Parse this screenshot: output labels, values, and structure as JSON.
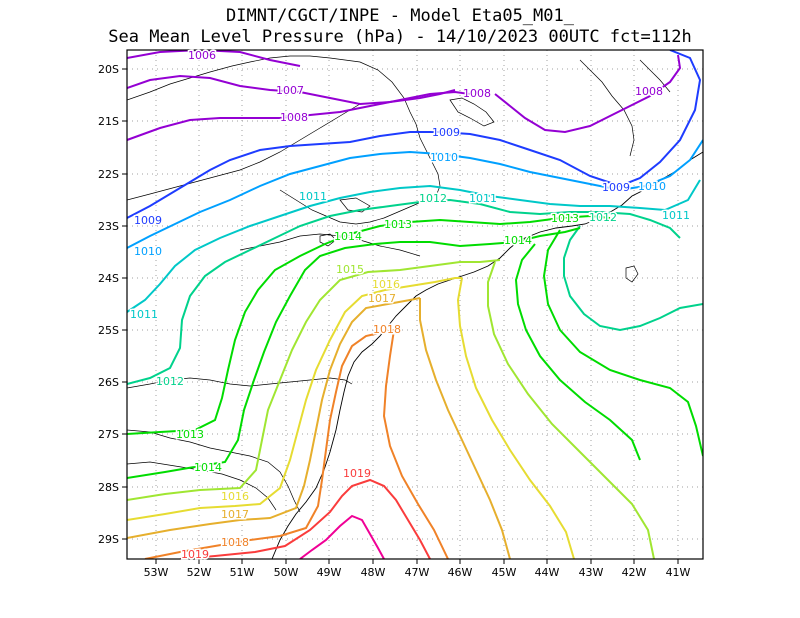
{
  "header": {
    "line1": "DIMNT/CGCT/INPE -  Model Eta05_M01_",
    "line2": "Sea Mean Level Pressure (hPa) - 14/10/2023 00UTC fct=112h"
  },
  "axes": {
    "lat_labels": [
      "20S",
      "21S",
      "22S",
      "23S",
      "24S",
      "25S",
      "26S",
      "27S",
      "28S",
      "29S"
    ],
    "lon_labels": [
      "53W",
      "52W",
      "51W",
      "50W",
      "49W",
      "48W",
      "47W",
      "46W",
      "45W",
      "44W",
      "43W",
      "42W",
      "41W"
    ]
  },
  "contour_labels": [
    {
      "text": "1006",
      "color": "#9400d3"
    },
    {
      "text": "1007",
      "color": "#9400d3"
    },
    {
      "text": "1008",
      "color": "#9400d3"
    },
    {
      "text": "1008",
      "color": "#9400d3"
    },
    {
      "text": "1008",
      "color": "#9400d3"
    },
    {
      "text": "1009",
      "color": "#1e3cff"
    },
    {
      "text": "1009",
      "color": "#1e3cff"
    },
    {
      "text": "1009",
      "color": "#1e3cff"
    },
    {
      "text": "1010",
      "color": "#00a0ff"
    },
    {
      "text": "1010",
      "color": "#00a0ff"
    },
    {
      "text": "1010",
      "color": "#00a0ff"
    },
    {
      "text": "1011",
      "color": "#00c8c8"
    },
    {
      "text": "1011",
      "color": "#00c8c8"
    },
    {
      "text": "1011",
      "color": "#00c8c8"
    },
    {
      "text": "1011",
      "color": "#00c8c8"
    },
    {
      "text": "1012",
      "color": "#00d28c"
    },
    {
      "text": "1012",
      "color": "#00d28c"
    },
    {
      "text": "1012",
      "color": "#00d28c"
    },
    {
      "text": "1013",
      "color": "#00dc00"
    },
    {
      "text": "1013",
      "color": "#00dc00"
    },
    {
      "text": "1013",
      "color": "#00dc00"
    },
    {
      "text": "1014",
      "color": "#00dc00"
    },
    {
      "text": "1014",
      "color": "#00dc00"
    },
    {
      "text": "1014",
      "color": "#00dc00"
    },
    {
      "text": "1015",
      "color": "#a0e632"
    },
    {
      "text": "1016",
      "color": "#e6dc32"
    },
    {
      "text": "1016",
      "color": "#e6dc32"
    },
    {
      "text": "1017",
      "color": "#e6af2d"
    },
    {
      "text": "1017",
      "color": "#e6af2d"
    },
    {
      "text": "1018",
      "color": "#f08228"
    },
    {
      "text": "1018",
      "color": "#f08228"
    },
    {
      "text": "1019",
      "color": "#fa3c3c"
    },
    {
      "text": "1019",
      "color": "#fa3c3c"
    }
  ]
}
